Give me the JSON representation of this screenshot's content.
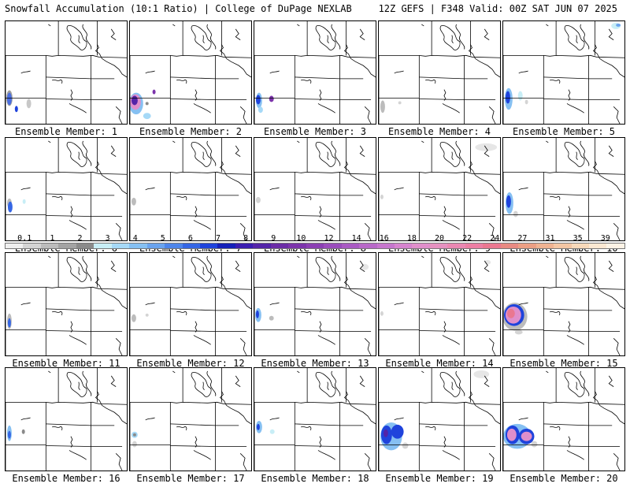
{
  "header": {
    "left": "Snowfall Accumulation (10:1 Ratio) | College of DuPage NEXLAB",
    "right": "12Z GEFS | F348 Valid: 00Z SAT JUN 07 2025"
  },
  "colorbar": {
    "labels": [
      "0.1",
      "1",
      "2",
      "3",
      "4",
      "5",
      "6",
      "7",
      "8",
      "9",
      "10",
      "12",
      "14",
      "16",
      "18",
      "20",
      "22",
      "24",
      "27",
      "31",
      "35",
      "39"
    ],
    "colors": [
      "#efefef",
      "#d4d4d4",
      "#bcbcbc",
      "#a3a3a3",
      "#8a8a8a",
      "#c8eef6",
      "#a6d9f7",
      "#86c0f2",
      "#6aa3ee",
      "#4d85ea",
      "#3566e4",
      "#1f43dc",
      "#1520b8",
      "#3a1cb0",
      "#5324a8",
      "#6b2ca6",
      "#7c34ab",
      "#8b3fb3",
      "#9a4cbc",
      "#a95ac3",
      "#b868c8",
      "#c676cd",
      "#d684cf",
      "#e08fcb",
      "#e691c0",
      "#ea87b2",
      "#ec7ea3",
      "#ea7790",
      "#e88a82",
      "#ec9f84",
      "#f0b392",
      "#f4c6a4",
      "#f8d9ba",
      "#fbe8d2",
      "#fdf3e6"
    ]
  },
  "icons": {
    "map": "regional-basemap-icon"
  },
  "members": [
    {
      "label": "Ensemble Member: 1",
      "snow": [
        {
          "x": 5,
          "y": 99,
          "rx": 4,
          "ry": 10,
          "c": "#9e9e9e"
        },
        {
          "x": 5,
          "y": 100,
          "rx": 3,
          "ry": 8,
          "c": "#4a6ee0"
        },
        {
          "x": 14,
          "y": 113,
          "rx": 2,
          "ry": 4,
          "c": "#1f43dc"
        },
        {
          "x": 30,
          "y": 106,
          "rx": 3,
          "ry": 6,
          "c": "#c8c8c8"
        }
      ]
    },
    {
      "label": "Ensemble Member: 2",
      "snow": [
        {
          "x": 8,
          "y": 106,
          "rx": 9,
          "ry": 14,
          "c": "#86c0f2"
        },
        {
          "x": 7,
          "y": 104,
          "rx": 7,
          "ry": 10,
          "c": "#e08fcb"
        },
        {
          "x": 6,
          "y": 102,
          "rx": 4,
          "ry": 6,
          "c": "#5324a8"
        },
        {
          "x": 22,
          "y": 122,
          "rx": 5,
          "ry": 4,
          "c": "#a6d9f7"
        },
        {
          "x": 31,
          "y": 91,
          "rx": 2,
          "ry": 3,
          "c": "#7c34ab"
        },
        {
          "x": 22,
          "y": 106,
          "rx": 2,
          "ry": 2,
          "c": "#8a8a8a"
        }
      ]
    },
    {
      "label": "Ensemble Member: 3",
      "snow": [
        {
          "x": 6,
          "y": 102,
          "rx": 4,
          "ry": 10,
          "c": "#86c0f2"
        },
        {
          "x": 5,
          "y": 101,
          "rx": 3,
          "ry": 6,
          "c": "#1f43dc"
        },
        {
          "x": 8,
          "y": 114,
          "rx": 3,
          "ry": 4,
          "c": "#a6d9f7"
        },
        {
          "x": 22,
          "y": 100,
          "rx": 3,
          "ry": 4,
          "c": "#7c34ab"
        }
      ]
    },
    {
      "label": "Ensemble Member: 4",
      "snow": [
        {
          "x": 5,
          "y": 110,
          "rx": 3,
          "ry": 8,
          "c": "#bcbcbc"
        },
        {
          "x": 27,
          "y": 105,
          "rx": 2,
          "ry": 2,
          "c": "#d4d4d4"
        }
      ]
    },
    {
      "label": "Ensemble Member: 5",
      "snow": [
        {
          "x": 7,
          "y": 100,
          "rx": 5,
          "ry": 14,
          "c": "#86c0f2"
        },
        {
          "x": 6,
          "y": 98,
          "rx": 3,
          "ry": 8,
          "c": "#1f43dc"
        },
        {
          "x": 22,
          "y": 96,
          "rx": 3,
          "ry": 6,
          "c": "#c8eef6"
        },
        {
          "x": 30,
          "y": 104,
          "rx": 2,
          "ry": 3,
          "c": "#d4d4d4"
        },
        {
          "x": 145,
          "y": 6,
          "rx": 6,
          "ry": 4,
          "c": "#c8eef6"
        },
        {
          "x": 148,
          "y": 5,
          "rx": 3,
          "ry": 2,
          "c": "#6aa3ee"
        }
      ]
    },
    {
      "label": "Ensemble Member: 6",
      "snow": [
        {
          "x": 5,
          "y": 84,
          "rx": 3,
          "ry": 6,
          "c": "#bcbcbc"
        },
        {
          "x": 6,
          "y": 89,
          "rx": 3,
          "ry": 7,
          "c": "#3566e4"
        },
        {
          "x": 24,
          "y": 82,
          "rx": 2,
          "ry": 3,
          "c": "#c8eef6"
        }
      ]
    },
    {
      "label": "Ensemble Member: 7",
      "snow": [
        {
          "x": 5,
          "y": 82,
          "rx": 3,
          "ry": 5,
          "c": "#bcbcbc"
        }
      ]
    },
    {
      "label": "Ensemble Member: 8",
      "snow": [
        {
          "x": 5,
          "y": 80,
          "rx": 3,
          "ry": 4,
          "c": "#d4d4d4"
        }
      ]
    },
    {
      "label": "Ensemble Member: 9",
      "snow": [
        {
          "x": 4,
          "y": 76,
          "rx": 2,
          "ry": 3,
          "c": "#d4d4d4"
        },
        {
          "x": 138,
          "y": 12,
          "rx": 14,
          "ry": 5,
          "c": "#e6e6e6"
        }
      ]
    },
    {
      "label": "Ensemble Member: 10",
      "snow": [
        {
          "x": 8,
          "y": 84,
          "rx": 5,
          "ry": 14,
          "c": "#86c0f2"
        },
        {
          "x": 7,
          "y": 82,
          "rx": 3,
          "ry": 8,
          "c": "#1f43dc"
        },
        {
          "x": 16,
          "y": 98,
          "rx": 3,
          "ry": 4,
          "c": "#d4d4d4"
        }
      ]
    },
    {
      "label": "Ensemble Member: 11",
      "snow": [
        {
          "x": 5,
          "y": 88,
          "rx": 3,
          "ry": 10,
          "c": "#bcbcbc"
        },
        {
          "x": 5,
          "y": 90,
          "rx": 2,
          "ry": 6,
          "c": "#3566e4"
        }
      ]
    },
    {
      "label": "Ensemble Member: 12",
      "snow": [
        {
          "x": 5,
          "y": 84,
          "rx": 3,
          "ry": 5,
          "c": "#bcbcbc"
        },
        {
          "x": 22,
          "y": 80,
          "rx": 2,
          "ry": 2,
          "c": "#d4d4d4"
        }
      ]
    },
    {
      "label": "Ensemble Member: 13",
      "snow": [
        {
          "x": 5,
          "y": 80,
          "rx": 4,
          "ry": 9,
          "c": "#86c0f2"
        },
        {
          "x": 4,
          "y": 79,
          "rx": 2,
          "ry": 5,
          "c": "#1f43dc"
        },
        {
          "x": 22,
          "y": 84,
          "rx": 3,
          "ry": 3,
          "c": "#bcbcbc"
        },
        {
          "x": 142,
          "y": 18,
          "rx": 5,
          "ry": 4,
          "c": "#e6e6e6"
        }
      ]
    },
    {
      "label": "Ensemble Member: 14",
      "snow": [
        {
          "x": 4,
          "y": 78,
          "rx": 2,
          "ry": 3,
          "c": "#d4d4d4"
        },
        {
          "x": 140,
          "y": 12,
          "rx": 4,
          "ry": 3,
          "c": "#e6e6e6"
        }
      ]
    },
    {
      "label": "Ensemble Member: 15",
      "snow": [
        {
          "x": 15,
          "y": 82,
          "rx": 16,
          "ry": 18,
          "c": "#bcbcbc"
        },
        {
          "x": 14,
          "y": 80,
          "rx": 13,
          "ry": 14,
          "c": "#1f43dc"
        },
        {
          "x": 13,
          "y": 80,
          "rx": 10,
          "ry": 11,
          "c": "#e08fcb"
        },
        {
          "x": 10,
          "y": 78,
          "rx": 5,
          "ry": 6,
          "c": "#ea7790"
        },
        {
          "x": 20,
          "y": 102,
          "rx": 5,
          "ry": 3,
          "c": "#d4d4d4"
        }
      ]
    },
    {
      "label": "Ensemble Member: 16",
      "snow": [
        {
          "x": 5,
          "y": 84,
          "rx": 3,
          "ry": 10,
          "c": "#86c0f2"
        },
        {
          "x": 5,
          "y": 86,
          "rx": 2,
          "ry": 5,
          "c": "#3566e4"
        },
        {
          "x": 23,
          "y": 82,
          "rx": 2,
          "ry": 3,
          "c": "#8a8a8a"
        }
      ]
    },
    {
      "label": "Ensemble Member: 17",
      "snow": [
        {
          "x": 6,
          "y": 86,
          "rx": 4,
          "ry": 4,
          "c": "#a6d9f7"
        },
        {
          "x": 6,
          "y": 86,
          "rx": 2,
          "ry": 2,
          "c": "#8a8a8a"
        },
        {
          "x": 6,
          "y": 98,
          "rx": 3,
          "ry": 4,
          "c": "#d4d4d4"
        }
      ]
    },
    {
      "label": "Ensemble Member: 18",
      "snow": [
        {
          "x": 6,
          "y": 76,
          "rx": 4,
          "ry": 8,
          "c": "#86c0f2"
        },
        {
          "x": 5,
          "y": 76,
          "rx": 2,
          "ry": 4,
          "c": "#1f43dc"
        },
        {
          "x": 23,
          "y": 82,
          "rx": 3,
          "ry": 3,
          "c": "#c8eef6"
        }
      ]
    },
    {
      "label": "Ensemble Member: 19",
      "snow": [
        {
          "x": 16,
          "y": 88,
          "rx": 14,
          "ry": 18,
          "c": "#86c0f2"
        },
        {
          "x": 10,
          "y": 86,
          "rx": 7,
          "ry": 12,
          "c": "#1f43dc"
        },
        {
          "x": 24,
          "y": 82,
          "rx": 8,
          "ry": 9,
          "c": "#1f43dc"
        },
        {
          "x": 9,
          "y": 84,
          "rx": 3,
          "ry": 5,
          "c": "#5324a8"
        },
        {
          "x": 34,
          "y": 100,
          "rx": 4,
          "ry": 4,
          "c": "#d4d4d4"
        },
        {
          "x": 132,
          "y": 8,
          "rx": 10,
          "ry": 5,
          "c": "#e6e6e6"
        }
      ]
    },
    {
      "label": "Ensemble Member: 20",
      "snow": [
        {
          "x": 18,
          "y": 88,
          "rx": 18,
          "ry": 16,
          "c": "#86c0f2"
        },
        {
          "x": 12,
          "y": 86,
          "rx": 9,
          "ry": 12,
          "c": "#1f43dc"
        },
        {
          "x": 30,
          "y": 88,
          "rx": 10,
          "ry": 10,
          "c": "#1f43dc"
        },
        {
          "x": 11,
          "y": 86,
          "rx": 6,
          "ry": 8,
          "c": "#e08fcb"
        },
        {
          "x": 30,
          "y": 88,
          "rx": 7,
          "ry": 6,
          "c": "#e08fcb"
        },
        {
          "x": 40,
          "y": 98,
          "rx": 4,
          "ry": 4,
          "c": "#d4d4d4"
        }
      ]
    }
  ]
}
